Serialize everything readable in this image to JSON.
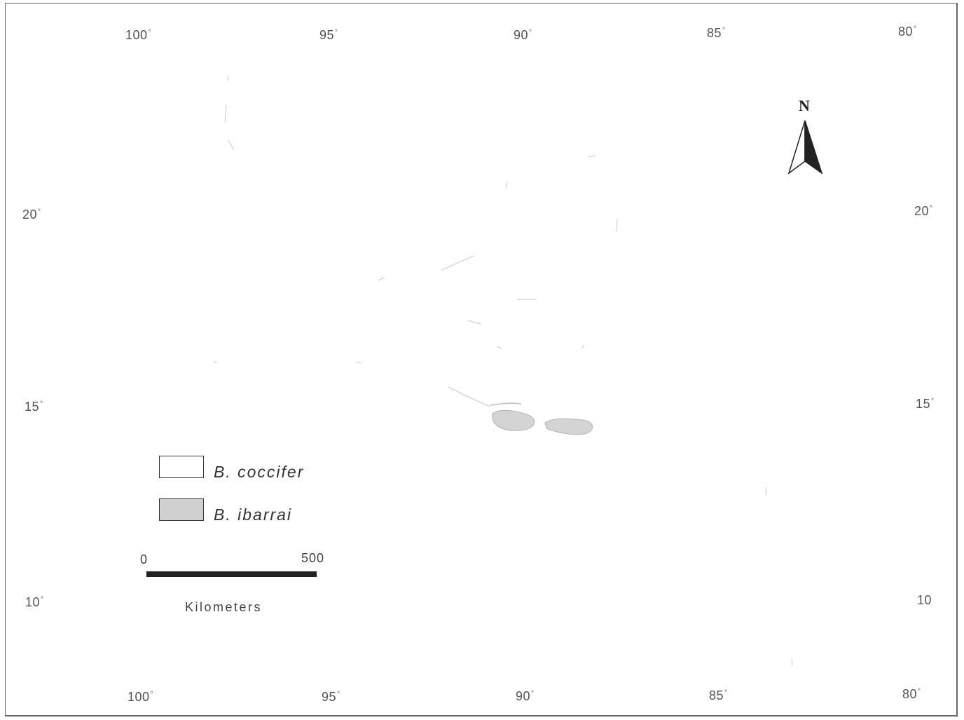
{
  "map": {
    "lon_ticks": {
      "top": [
        "100",
        "95",
        "90",
        "85",
        "80"
      ],
      "bottom": [
        "100",
        "95",
        "90",
        "85",
        "80"
      ]
    },
    "lat_ticks": {
      "left": [
        "20",
        "15",
        "10"
      ],
      "right": [
        "20",
        "15",
        "10"
      ]
    },
    "degree_symbol": "°",
    "north_label": "N",
    "legend": {
      "items": [
        {
          "label": "B. coccifer",
          "fill": "#ffffff"
        },
        {
          "label": "B. ibarrai",
          "fill": "#d0d0d0"
        }
      ]
    },
    "scale_bar": {
      "start_label": "0",
      "end_label": "500",
      "units": "Kilometers"
    },
    "colors": {
      "range_fill": "#d4d4d4",
      "range_stroke": "#b5b5b5",
      "frame": "#666666",
      "background": "#ffffff"
    }
  }
}
